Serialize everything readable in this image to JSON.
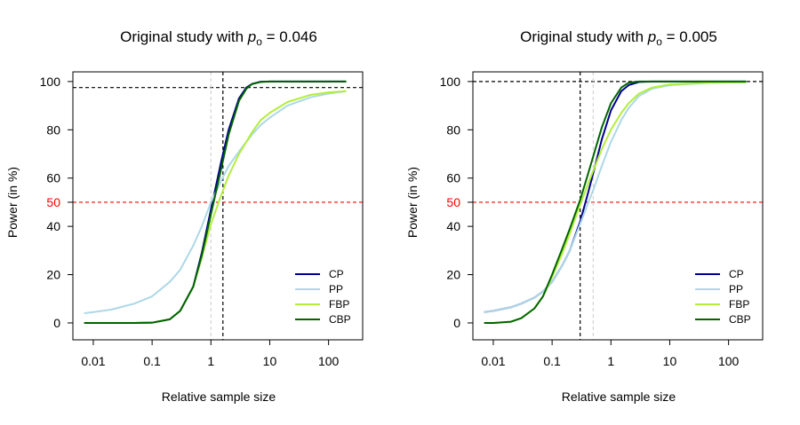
{
  "chart_data": [
    {
      "type": "line",
      "title_prefix": "Original study with ",
      "title_symbol": "p",
      "title_subscript": "o",
      "title_suffix": " =  0.046",
      "xlabel": "Relative sample size",
      "ylabel": "Power (in %)",
      "x_scale": "log",
      "xlim": [
        0.0045,
        380
      ],
      "ylim": [
        -7,
        104
      ],
      "x_ticks": [
        0.01,
        0.1,
        1,
        10,
        100
      ],
      "x_tick_labels": [
        "0.01",
        "0.1",
        "1",
        "10",
        "100"
      ],
      "y_ticks": [
        0,
        20,
        40,
        60,
        80,
        100
      ],
      "y_tick_labels": [
        "0",
        "20",
        "40",
        "60",
        "80",
        "100"
      ],
      "y_extra_tick": {
        "value": 50,
        "label": "50",
        "color": "#ff0000"
      },
      "reference_lines": [
        {
          "axis": "y",
          "value": 50,
          "color": "#ff0000",
          "style": "dashed"
        },
        {
          "axis": "y",
          "value": 97.5,
          "color": "#000000",
          "style": "dashed"
        },
        {
          "axis": "x",
          "value": 1,
          "color": "#d3d3d3",
          "style": "dashed"
        },
        {
          "axis": "x",
          "value": 1.6,
          "color": "#000000",
          "style": "dashed"
        }
      ],
      "legend_position": "bottom-right",
      "series": [
        {
          "name": "CP",
          "color": "#00008b",
          "x": [
            0.007,
            0.01,
            0.02,
            0.05,
            0.1,
            0.2,
            0.3,
            0.5,
            0.7,
            1,
            1.5,
            2,
            3,
            4,
            5,
            7,
            10,
            20,
            50,
            100,
            200
          ],
          "y": [
            0,
            0,
            0,
            0,
            0.1,
            1.5,
            5,
            15,
            29,
            47,
            67,
            80,
            93,
            97.5,
            99,
            99.9,
            100,
            100,
            100,
            100,
            100
          ]
        },
        {
          "name": "PP",
          "color": "#add8e6",
          "x": [
            0.007,
            0.01,
            0.02,
            0.05,
            0.1,
            0.2,
            0.3,
            0.5,
            0.7,
            1,
            1.5,
            2,
            3,
            4,
            5,
            7,
            10,
            20,
            50,
            100,
            200
          ],
          "y": [
            4,
            4.5,
            5.5,
            8,
            11,
            17,
            22,
            32,
            40,
            50,
            59,
            65,
            71,
            75,
            78,
            82,
            85,
            90,
            93.5,
            95,
            96
          ]
        },
        {
          "name": "FBP",
          "color": "#b3ee3a",
          "x": [
            0.007,
            0.01,
            0.02,
            0.05,
            0.1,
            0.2,
            0.3,
            0.5,
            0.7,
            1,
            1.5,
            2,
            3,
            4,
            5,
            7,
            10,
            20,
            50,
            100,
            200
          ],
          "y": [
            0,
            0,
            0,
            0,
            0.1,
            1.5,
            5,
            15,
            27,
            41,
            53,
            61,
            70,
            75,
            79,
            84,
            87,
            91.5,
            94.5,
            95.5,
            96
          ]
        },
        {
          "name": "CBP",
          "color": "#006400",
          "x": [
            0.007,
            0.01,
            0.02,
            0.05,
            0.1,
            0.2,
            0.3,
            0.5,
            0.7,
            1,
            1.5,
            2,
            3,
            4,
            5,
            7,
            10,
            20,
            50,
            100,
            200
          ],
          "y": [
            0,
            0,
            0,
            0,
            0.1,
            1.5,
            5,
            15,
            28,
            45,
            64,
            78,
            92,
            97,
            99,
            99.8,
            100,
            100,
            100,
            100,
            100
          ]
        }
      ]
    },
    {
      "type": "line",
      "title_prefix": "Original study with ",
      "title_symbol": "p",
      "title_subscript": "o",
      "title_suffix": " =  0.005",
      "xlabel": "Relative sample size",
      "ylabel": "Power (in %)",
      "x_scale": "log",
      "xlim": [
        0.0045,
        380
      ],
      "ylim": [
        -7,
        104
      ],
      "x_ticks": [
        0.01,
        0.1,
        1,
        10,
        100
      ],
      "x_tick_labels": [
        "0.01",
        "0.1",
        "1",
        "10",
        "100"
      ],
      "y_ticks": [
        0,
        20,
        40,
        60,
        80,
        100
      ],
      "y_tick_labels": [
        "0",
        "20",
        "40",
        "60",
        "80",
        "100"
      ],
      "y_extra_tick": {
        "value": 50,
        "label": "50",
        "color": "#ff0000"
      },
      "reference_lines": [
        {
          "axis": "y",
          "value": 50,
          "color": "#ff0000",
          "style": "dashed"
        },
        {
          "axis": "y",
          "value": 100,
          "color": "#000000",
          "style": "dashed"
        },
        {
          "axis": "x",
          "value": 0.3,
          "color": "#000000",
          "style": "dashed"
        },
        {
          "axis": "x",
          "value": 0.5,
          "color": "#d3d3d3",
          "style": "dashed"
        }
      ],
      "legend_position": "bottom-right",
      "series": [
        {
          "name": "CP",
          "color": "#00008b",
          "x": [
            0.007,
            0.01,
            0.02,
            0.03,
            0.05,
            0.07,
            0.1,
            0.15,
            0.2,
            0.3,
            0.4,
            0.5,
            0.7,
            1,
            1.5,
            2,
            3,
            5,
            10,
            50,
            200
          ],
          "y": [
            4.5,
            5,
            6.5,
            8,
            10.5,
            13,
            17,
            24,
            30,
            42,
            53,
            62,
            76,
            88,
            96,
            98.5,
            99.8,
            100,
            100,
            100,
            100
          ]
        },
        {
          "name": "PP",
          "color": "#add8e6",
          "x": [
            0.007,
            0.01,
            0.02,
            0.03,
            0.05,
            0.07,
            0.1,
            0.15,
            0.2,
            0.3,
            0.4,
            0.5,
            0.7,
            1,
            1.5,
            2,
            3,
            5,
            10,
            50,
            200
          ],
          "y": [
            4.5,
            5,
            6.5,
            8,
            10.5,
            13,
            17,
            24,
            30,
            41,
            49,
            55,
            65,
            75,
            84,
            89,
            94,
            97,
            98.5,
            99.5,
            99.7
          ]
        },
        {
          "name": "FBP",
          "color": "#b3ee3a",
          "x": [
            0.007,
            0.01,
            0.02,
            0.03,
            0.05,
            0.07,
            0.1,
            0.15,
            0.2,
            0.3,
            0.4,
            0.5,
            0.7,
            1,
            1.5,
            2,
            3,
            5,
            10,
            50,
            200
          ],
          "y": [
            0,
            0,
            0.5,
            2,
            6,
            11,
            19,
            29,
            37,
            49,
            57,
            63,
            72,
            80,
            87,
            91,
            95,
            97.5,
            98.8,
            99.5,
            99.7
          ]
        },
        {
          "name": "CBP",
          "color": "#006400",
          "x": [
            0.007,
            0.01,
            0.02,
            0.03,
            0.05,
            0.07,
            0.1,
            0.15,
            0.2,
            0.3,
            0.4,
            0.5,
            0.7,
            1,
            1.5,
            2,
            3,
            5,
            10,
            50,
            200
          ],
          "y": [
            0,
            0,
            0.5,
            2,
            6,
            11,
            20,
            31,
            39,
            51,
            61,
            69,
            81,
            91,
            97.5,
            99.5,
            100,
            100,
            100,
            100,
            100
          ]
        }
      ]
    }
  ]
}
